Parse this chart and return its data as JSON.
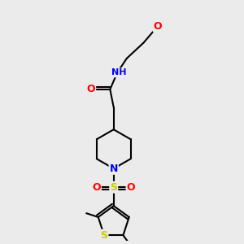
{
  "background_color": "#ebebeb",
  "bond_color": "#000000",
  "atom_colors": {
    "O": "#ff0000",
    "N": "#0000ff",
    "S_sulfonyl": "#cccc00",
    "S_thiophene": "#cccc00",
    "H": "#708090",
    "C": "#000000"
  },
  "fig_size": [
    3.0,
    3.0
  ],
  "dpi": 100,
  "xlim": [
    0,
    10
  ],
  "ylim": [
    0,
    10
  ],
  "lw": 1.5,
  "font_size": 9
}
